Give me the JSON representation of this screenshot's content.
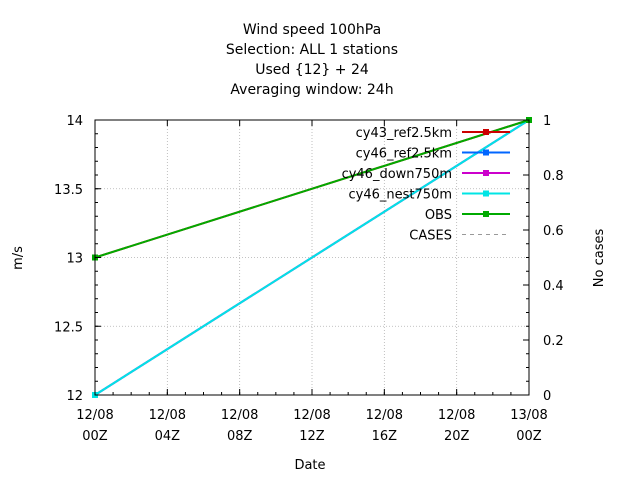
{
  "chart_data": {
    "type": "line",
    "title_lines": [
      "Wind speed 100hPa",
      "Selection: ALL      1 stations",
      "Used {12} + 24",
      "Averaging window: 24h"
    ],
    "xlabel": "Date",
    "ylabel": "m/s",
    "y2label": "No cases",
    "x_ticks": [
      {
        "line1": "12/08",
        "line2": "00Z",
        "hour": 0
      },
      {
        "line1": "12/08",
        "line2": "04Z",
        "hour": 4
      },
      {
        "line1": "12/08",
        "line2": "08Z",
        "hour": 8
      },
      {
        "line1": "12/08",
        "line2": "12Z",
        "hour": 12
      },
      {
        "line1": "12/08",
        "line2": "16Z",
        "hour": 16
      },
      {
        "line1": "12/08",
        "line2": "20Z",
        "hour": 20
      },
      {
        "line1": "13/08",
        "line2": "00Z",
        "hour": 24
      }
    ],
    "xlim_hours": [
      0,
      24
    ],
    "ylim": [
      12,
      14
    ],
    "y_ticks": [
      "12",
      "12.5",
      "13",
      "13.5",
      "14"
    ],
    "y2lim": [
      0,
      1
    ],
    "y2_ticks": [
      "0",
      "0.2",
      "0.4",
      "0.6",
      "0.8",
      "1"
    ],
    "grid": true,
    "legend_position": "top-right",
    "series": [
      {
        "name": "cy43_ref2.5km",
        "color": "#cc0000",
        "axis": "y",
        "x_hours": [
          0,
          24
        ],
        "values": [
          13,
          14
        ]
      },
      {
        "name": "cy46_ref2.5km",
        "color": "#0066ff",
        "axis": "y",
        "x_hours": [
          0,
          24
        ],
        "values": [
          12,
          14
        ]
      },
      {
        "name": "cy46_down750m",
        "color": "#cc00cc",
        "axis": "y",
        "x_hours": [
          0,
          24
        ],
        "values": [
          12,
          14
        ]
      },
      {
        "name": "cy46_nest750m",
        "color": "#00e5e5",
        "axis": "y",
        "x_hours": [
          0,
          24
        ],
        "values": [
          12,
          14
        ]
      },
      {
        "name": "OBS",
        "color": "#00aa00",
        "axis": "y",
        "x_hours": [
          0,
          24
        ],
        "values": [
          13,
          14
        ]
      },
      {
        "name": "CASES",
        "color": "#999999",
        "axis": "y2",
        "dashed": true,
        "x_hours": [
          0,
          24
        ],
        "values": [
          1,
          1
        ]
      }
    ]
  }
}
